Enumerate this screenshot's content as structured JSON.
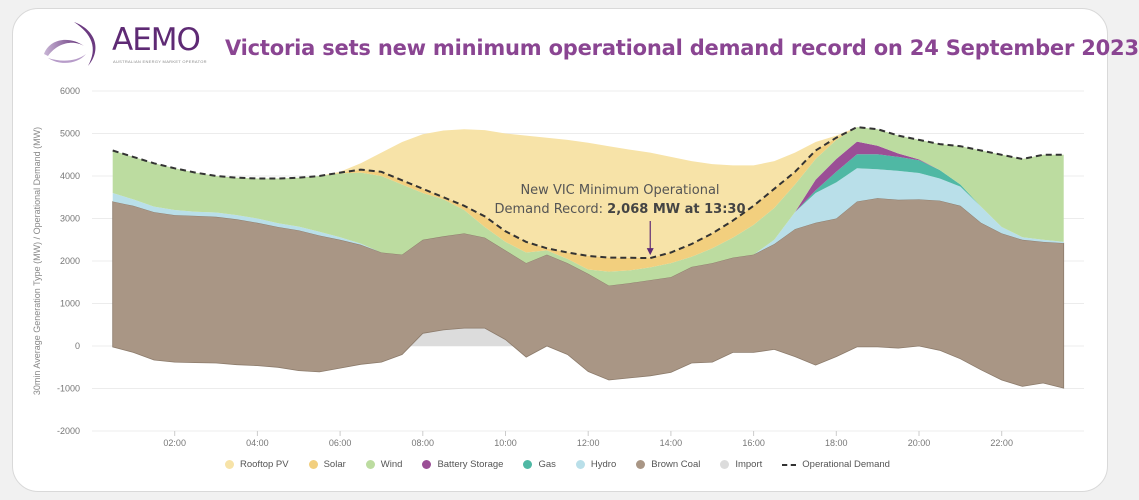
{
  "logo": {
    "name": "AEMO",
    "subtitle": "AUSTRALIAN ENERGY MARKET OPERATOR"
  },
  "title": "Victoria sets new minimum operational demand record on 24 September 2023",
  "chart_data": {
    "type": "area",
    "stacked": true,
    "title": "Victoria sets new minimum operational demand record on 24 September 2023",
    "xlabel": "",
    "ylabel": "30min Average Generation Type (MW) / Operational Demand (MW)",
    "ylim": [
      -2000,
      6000
    ],
    "yticks": [
      "6000",
      "5000",
      "4000",
      "3000",
      "2000",
      "1000",
      "0",
      "-1000",
      "-2000"
    ],
    "xticks": [
      "02:00",
      "04:00",
      "06:00",
      "08:00",
      "10:00",
      "12:00",
      "14:00",
      "16:00",
      "18:00",
      "20:00",
      "22:00"
    ],
    "grid": "horizontal",
    "legend_position": "bottom",
    "x": [
      "00:30",
      "01:00",
      "01:30",
      "02:00",
      "02:30",
      "03:00",
      "03:30",
      "04:00",
      "04:30",
      "05:00",
      "05:30",
      "06:00",
      "06:30",
      "07:00",
      "07:30",
      "08:00",
      "08:30",
      "09:00",
      "09:30",
      "10:00",
      "10:30",
      "11:00",
      "11:30",
      "12:00",
      "12:30",
      "13:00",
      "13:30",
      "14:00",
      "14:30",
      "15:00",
      "15:30",
      "16:00",
      "16:30",
      "17:00",
      "17:30",
      "18:00",
      "18:30",
      "19:00",
      "19:30",
      "20:00",
      "20:30",
      "21:00",
      "21:30",
      "22:00",
      "22:30",
      "23:00",
      "23:30"
    ],
    "series": [
      {
        "name": "Import",
        "color": "#dcdcdc",
        "values": [
          -20,
          -150,
          -330,
          -380,
          -390,
          -400,
          -440,
          -460,
          -500,
          -580,
          -610,
          -520,
          -430,
          -380,
          -200,
          300,
          380,
          420,
          420,
          150,
          -260,
          0,
          -200,
          -600,
          -800,
          -750,
          -700,
          -620,
          -400,
          -380,
          -150,
          -150,
          -80,
          -250,
          -450,
          -250,
          -20,
          -20,
          -50,
          0,
          -100,
          -300,
          -560,
          -800,
          -950,
          -870,
          -990
        ]
      },
      {
        "name": "Brown Coal",
        "color": "#a99685",
        "values": [
          3420,
          3450,
          3480,
          3460,
          3450,
          3440,
          3420,
          3360,
          3300,
          3300,
          3210,
          3020,
          2810,
          2580,
          2350,
          2200,
          2200,
          2230,
          2130,
          2100,
          2210,
          2150,
          2150,
          2300,
          2220,
          2230,
          2250,
          2240,
          2260,
          2330,
          2230,
          2300,
          2480,
          3000,
          3350,
          3250,
          3420,
          3500,
          3490,
          3450,
          3520,
          3600,
          3460,
          3450,
          3450,
          3320,
          3410
        ]
      },
      {
        "name": "Hydro",
        "color": "#b9dfe9",
        "values": [
          200,
          150,
          130,
          120,
          100,
          100,
          100,
          100,
          90,
          90,
          90,
          60,
          30,
          0,
          0,
          0,
          0,
          0,
          0,
          0,
          0,
          0,
          0,
          0,
          0,
          0,
          0,
          0,
          0,
          0,
          0,
          0,
          100,
          400,
          700,
          850,
          780,
          680,
          680,
          620,
          520,
          450,
          380,
          150,
          60,
          50,
          30
        ]
      },
      {
        "name": "Gas",
        "color": "#4fb8a4",
        "values": [
          0,
          0,
          0,
          0,
          0,
          0,
          0,
          0,
          0,
          0,
          0,
          0,
          0,
          0,
          0,
          0,
          0,
          0,
          0,
          0,
          0,
          0,
          0,
          0,
          0,
          0,
          0,
          0,
          0,
          0,
          0,
          0,
          0,
          0,
          60,
          250,
          330,
          350,
          330,
          300,
          200,
          50,
          0,
          0,
          0,
          0,
          0
        ]
      },
      {
        "name": "Battery Storage",
        "color": "#9b4f96",
        "values": [
          0,
          0,
          0,
          0,
          0,
          0,
          0,
          0,
          0,
          0,
          0,
          0,
          0,
          0,
          0,
          0,
          0,
          0,
          0,
          0,
          0,
          0,
          0,
          0,
          0,
          0,
          0,
          0,
          0,
          0,
          0,
          0,
          0,
          0,
          250,
          300,
          300,
          200,
          80,
          20,
          0,
          0,
          0,
          0,
          0,
          0,
          0
        ]
      },
      {
        "name": "Wind",
        "color": "#bcdca0",
        "values": [
          1000,
          1000,
          1020,
          980,
          920,
          860,
          880,
          940,
          1050,
          1150,
          1310,
          1500,
          1670,
          1800,
          1650,
          1100,
          870,
          550,
          250,
          200,
          250,
          100,
          100,
          100,
          330,
          300,
          300,
          330,
          240,
          350,
          470,
          700,
          750,
          650,
          490,
          450,
          340,
          390,
          420,
          460,
          610,
          900,
          1320,
          1700,
          1840,
          2000,
          2050
        ]
      },
      {
        "name": "Solar",
        "color": "#f2cf7e",
        "values": [
          0,
          0,
          0,
          0,
          0,
          0,
          0,
          0,
          0,
          0,
          0,
          20,
          70,
          100,
          100,
          100,
          50,
          100,
          250,
          250,
          250,
          50,
          150,
          320,
          330,
          295,
          218,
          250,
          300,
          350,
          400,
          450,
          450,
          300,
          200,
          50,
          0,
          0,
          0,
          0,
          0,
          0,
          0,
          0,
          0,
          0,
          0
        ]
      },
      {
        "name": "Rooftop PV",
        "color": "#f7e3a8",
        "values": [
          0,
          0,
          0,
          0,
          0,
          0,
          0,
          0,
          0,
          0,
          0,
          20,
          150,
          450,
          900,
          1280,
          1570,
          1800,
          2030,
          2300,
          2500,
          2600,
          2650,
          2660,
          2620,
          2545,
          2482,
          2250,
          1950,
          1630,
          1300,
          950,
          650,
          450,
          200,
          50,
          0,
          0,
          0,
          0,
          0,
          0,
          0,
          0,
          0,
          0,
          0
        ]
      }
    ],
    "line": {
      "name": "Operational Demand",
      "color": "#333333",
      "style": "dashed",
      "values": [
        4600,
        4450,
        4300,
        4180,
        4080,
        4000,
        3960,
        3940,
        3940,
        3960,
        4000,
        4080,
        4150,
        4100,
        3900,
        3700,
        3500,
        3300,
        3050,
        2700,
        2450,
        2300,
        2200,
        2120,
        2080,
        2075,
        2068,
        2200,
        2400,
        2650,
        2950,
        3300,
        3700,
        4100,
        4600,
        4900,
        5150,
        5100,
        4950,
        4850,
        4750,
        4700,
        4600,
        4500,
        4400,
        4500,
        4500
      ]
    },
    "annotation": {
      "line1": "New VIC Minimum Operational",
      "line2_prefix": "Demand Record: ",
      "line2_bold": "2,068 MW at 13:30",
      "x": "13:30",
      "y": 2068
    }
  },
  "legend": [
    {
      "label": "Rooftop PV",
      "color": "#f7e3a8",
      "marker": "dot"
    },
    {
      "label": "Solar",
      "color": "#f2cf7e",
      "marker": "dot"
    },
    {
      "label": "Wind",
      "color": "#bcdca0",
      "marker": "dot"
    },
    {
      "label": "Battery Storage",
      "color": "#9b4f96",
      "marker": "dot"
    },
    {
      "label": "Gas",
      "color": "#4fb8a4",
      "marker": "dot"
    },
    {
      "label": "Hydro",
      "color": "#b9dfe9",
      "marker": "dot"
    },
    {
      "label": "Brown Coal",
      "color": "#a99685",
      "marker": "dot"
    },
    {
      "label": "Import",
      "color": "#dcdcdc",
      "marker": "dot"
    },
    {
      "label": "Operational Demand",
      "color": "#333333",
      "marker": "dash"
    }
  ],
  "colors": {
    "title": "#8a4592",
    "logo": "#5e2a74"
  }
}
